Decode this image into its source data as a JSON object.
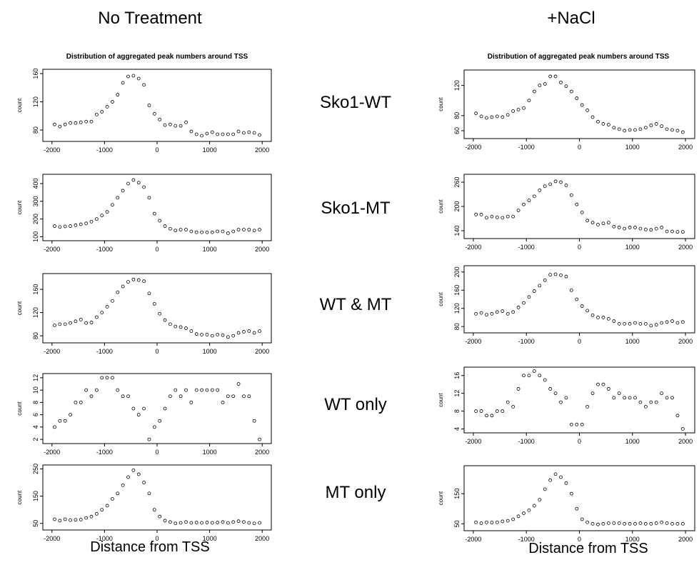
{
  "headers": {
    "left": "No Treatment",
    "right": "+NaCl"
  },
  "row_labels": [
    "Sko1-WT",
    "Sko1-MT",
    "WT & MT",
    "WT only",
    "MT only"
  ],
  "plot_title": "Distribution of aggregated peak numbers around TSS",
  "x_axis_title": "Distance from TSS",
  "chart_data": [
    {
      "type": "scatter",
      "column": "No Treatment",
      "row": "Sko1-WT",
      "title": "Distribution of aggregated peak numbers around TSS",
      "ylabel": "count",
      "xlim": [
        -2000,
        2000
      ],
      "ylim": [
        70,
        160
      ],
      "x": [
        -1950,
        -1850,
        -1750,
        -1650,
        -1550,
        -1450,
        -1350,
        -1250,
        -1150,
        -1050,
        -950,
        -850,
        -750,
        -650,
        -550,
        -450,
        -350,
        -250,
        -150,
        -50,
        50,
        150,
        250,
        350,
        450,
        550,
        650,
        750,
        850,
        950,
        1050,
        1150,
        1250,
        1350,
        1450,
        1550,
        1650,
        1750,
        1850,
        1950
      ],
      "y": [
        88,
        85,
        88,
        90,
        90,
        91,
        92,
        92,
        102,
        106,
        113,
        120,
        130,
        147,
        156,
        157,
        153,
        144,
        115,
        103,
        95,
        87,
        88,
        86,
        86,
        91,
        78,
        74,
        72,
        75,
        77,
        74,
        74,
        74,
        74,
        78,
        76,
        77,
        76,
        73
      ],
      "xticks": [
        -2000,
        -1000,
        0,
        1000,
        2000
      ],
      "yticks": [
        80,
        120,
        160
      ]
    },
    {
      "type": "scatter",
      "column": "+NaCl",
      "row": "Sko1-WT",
      "title": "Distribution of aggregated peak numbers around TSS",
      "ylabel": "count",
      "xlim": [
        -2000,
        2000
      ],
      "ylim": [
        55,
        135
      ],
      "x": [
        -1950,
        -1850,
        -1750,
        -1650,
        -1550,
        -1450,
        -1350,
        -1250,
        -1150,
        -1050,
        -950,
        -850,
        -750,
        -650,
        -550,
        -450,
        -350,
        -250,
        -150,
        -50,
        50,
        150,
        250,
        350,
        450,
        550,
        650,
        750,
        850,
        950,
        1050,
        1150,
        1250,
        1350,
        1450,
        1550,
        1650,
        1750,
        1850,
        1950
      ],
      "y": [
        83,
        79,
        77,
        78,
        79,
        78,
        81,
        86,
        88,
        90,
        100,
        112,
        120,
        122,
        132,
        132,
        124,
        119,
        112,
        103,
        94,
        87,
        78,
        72,
        69,
        68,
        64,
        62,
        60,
        61,
        61,
        62,
        64,
        67,
        69,
        66,
        62,
        61,
        60,
        58
      ],
      "xticks": [
        -2000,
        -1000,
        0,
        1000,
        2000
      ],
      "yticks": [
        60,
        80,
        120
      ]
    },
    {
      "type": "scatter",
      "column": "No Treatment",
      "row": "Sko1-MT",
      "title": "",
      "ylabel": "count",
      "xlim": [
        -2000,
        2000
      ],
      "ylim": [
        100,
        430
      ],
      "x": [
        -1950,
        -1850,
        -1750,
        -1650,
        -1550,
        -1450,
        -1350,
        -1250,
        -1150,
        -1050,
        -950,
        -850,
        -750,
        -650,
        -550,
        -450,
        -350,
        -250,
        -150,
        -50,
        50,
        150,
        250,
        350,
        450,
        550,
        650,
        750,
        850,
        950,
        1050,
        1150,
        1250,
        1350,
        1450,
        1550,
        1650,
        1750,
        1850,
        1950
      ],
      "y": [
        160,
        155,
        158,
        160,
        165,
        170,
        175,
        185,
        200,
        220,
        240,
        280,
        320,
        360,
        400,
        420,
        405,
        380,
        320,
        230,
        190,
        160,
        145,
        135,
        140,
        140,
        130,
        125,
        125,
        125,
        125,
        130,
        130,
        120,
        130,
        140,
        140,
        140,
        135,
        140
      ],
      "xticks": [
        -2000,
        -1000,
        0,
        1000,
        2000
      ],
      "yticks": [
        100,
        200,
        300,
        400
      ]
    },
    {
      "type": "scatter",
      "column": "+NaCl",
      "row": "Sko1-MT",
      "title": "",
      "ylabel": "count",
      "xlim": [
        -2000,
        2000
      ],
      "ylim": [
        130,
        270
      ],
      "x": [
        -1950,
        -1850,
        -1750,
        -1650,
        -1550,
        -1450,
        -1350,
        -1250,
        -1150,
        -1050,
        -950,
        -850,
        -750,
        -650,
        -550,
        -450,
        -350,
        -250,
        -150,
        -50,
        50,
        150,
        250,
        350,
        450,
        550,
        650,
        750,
        850,
        950,
        1050,
        1150,
        1250,
        1350,
        1450,
        1550,
        1650,
        1750,
        1850,
        1950
      ],
      "y": [
        180,
        180,
        172,
        175,
        173,
        172,
        175,
        175,
        190,
        205,
        215,
        225,
        240,
        250,
        255,
        262,
        260,
        252,
        228,
        205,
        185,
        165,
        160,
        155,
        158,
        160,
        150,
        148,
        145,
        148,
        148,
        145,
        143,
        142,
        145,
        148,
        138,
        138,
        137,
        137
      ],
      "xticks": [
        -2000,
        -1000,
        0,
        1000,
        2000
      ],
      "yticks": [
        140,
        200,
        260
      ]
    },
    {
      "type": "scatter",
      "column": "No Treatment",
      "row": "WT & MT",
      "title": "",
      "ylabel": "count",
      "xlim": [
        -2000,
        2000
      ],
      "ylim": [
        75,
        180
      ],
      "x": [
        -1950,
        -1850,
        -1750,
        -1650,
        -1550,
        -1450,
        -1350,
        -1250,
        -1150,
        -1050,
        -950,
        -850,
        -750,
        -650,
        -550,
        -450,
        -350,
        -250,
        -150,
        -50,
        50,
        150,
        250,
        350,
        450,
        550,
        650,
        750,
        850,
        950,
        1050,
        1150,
        1250,
        1350,
        1450,
        1550,
        1650,
        1750,
        1850,
        1950
      ],
      "y": [
        98,
        100,
        100,
        102,
        105,
        108,
        102,
        103,
        112,
        120,
        130,
        140,
        155,
        165,
        173,
        177,
        176,
        174,
        153,
        135,
        118,
        107,
        100,
        96,
        95,
        93,
        88,
        83,
        82,
        82,
        80,
        82,
        81,
        78,
        80,
        85,
        87,
        88,
        85,
        88
      ],
      "xticks": [
        -2000,
        -1000,
        0,
        1000,
        2000
      ],
      "yticks": [
        80,
        120,
        160
      ]
    },
    {
      "type": "scatter",
      "column": "+NaCl",
      "row": "WT & MT",
      "title": "",
      "ylabel": "count",
      "xlim": [
        -2000,
        2000
      ],
      "ylim": [
        75,
        205
      ],
      "x": [
        -1950,
        -1850,
        -1750,
        -1650,
        -1550,
        -1450,
        -1350,
        -1250,
        -1150,
        -1050,
        -950,
        -850,
        -750,
        -650,
        -550,
        -450,
        -350,
        -250,
        -150,
        -50,
        50,
        150,
        250,
        350,
        450,
        550,
        650,
        750,
        850,
        950,
        1050,
        1150,
        1250,
        1350,
        1450,
        1550,
        1650,
        1750,
        1850,
        1950
      ],
      "y": [
        108,
        110,
        106,
        108,
        112,
        114,
        108,
        112,
        122,
        132,
        145,
        158,
        170,
        182,
        194,
        195,
        193,
        190,
        160,
        140,
        125,
        115,
        105,
        100,
        100,
        97,
        92,
        86,
        86,
        86,
        88,
        86,
        86,
        82,
        84,
        88,
        90,
        92,
        88,
        90
      ],
      "xticks": [
        -2000,
        -1000,
        0,
        1000,
        2000
      ],
      "yticks": [
        80,
        120,
        160,
        200
      ]
    },
    {
      "type": "scatter",
      "column": "No Treatment",
      "row": "WT only",
      "title": "",
      "ylabel": "count",
      "xlim": [
        -2000,
        2000
      ],
      "ylim": [
        2,
        12
      ],
      "x": [
        -1950,
        -1850,
        -1750,
        -1650,
        -1550,
        -1450,
        -1350,
        -1250,
        -1150,
        -1050,
        -950,
        -850,
        -750,
        -650,
        -550,
        -450,
        -350,
        -250,
        -150,
        -50,
        50,
        150,
        250,
        350,
        450,
        550,
        650,
        750,
        850,
        950,
        1050,
        1150,
        1250,
        1350,
        1450,
        1550,
        1650,
        1750,
        1850,
        1950
      ],
      "y": [
        4,
        5,
        5,
        6,
        8,
        8,
        10,
        9,
        10,
        12,
        12,
        12,
        10,
        9,
        9,
        7,
        6,
        7,
        2,
        4,
        5,
        7,
        9,
        10,
        9,
        10,
        8,
        10,
        10,
        10,
        10,
        10,
        8,
        9,
        9,
        11,
        9,
        9,
        5,
        2
      ],
      "xticks": [
        -2000,
        -1000,
        0,
        1000,
        2000
      ],
      "yticks": [
        2,
        4,
        6,
        8,
        10,
        12
      ]
    },
    {
      "type": "scatter",
      "column": "+NaCl",
      "row": "WT only",
      "title": "",
      "ylabel": "count",
      "xlim": [
        -2000,
        2000
      ],
      "ylim": [
        4,
        17
      ],
      "x": [
        -1950,
        -1850,
        -1750,
        -1650,
        -1550,
        -1450,
        -1350,
        -1250,
        -1150,
        -1050,
        -950,
        -850,
        -750,
        -650,
        -550,
        -450,
        -350,
        -250,
        -150,
        -50,
        50,
        150,
        250,
        350,
        450,
        550,
        650,
        750,
        850,
        950,
        1050,
        1150,
        1250,
        1350,
        1450,
        1550,
        1650,
        1750,
        1850,
        1950
      ],
      "y": [
        8,
        8,
        7,
        7,
        8,
        8,
        10,
        9,
        13,
        16,
        16,
        17,
        16,
        15,
        13,
        12,
        10,
        11,
        5,
        5,
        5,
        9,
        12,
        14,
        14,
        13,
        11,
        12,
        11,
        11,
        11,
        10,
        9,
        10,
        10,
        12,
        11,
        11,
        7,
        4
      ],
      "xticks": [
        -2000,
        -1000,
        0,
        1000,
        2000
      ],
      "yticks": [
        4,
        8,
        12,
        16
      ]
    },
    {
      "type": "scatter",
      "column": "No Treatment",
      "row": "MT only",
      "title": "",
      "ylabel": "count",
      "xlim": [
        -2000,
        2000
      ],
      "ylim": [
        40,
        250
      ],
      "x": [
        -1950,
        -1850,
        -1750,
        -1650,
        -1550,
        -1450,
        -1350,
        -1250,
        -1150,
        -1050,
        -950,
        -850,
        -750,
        -650,
        -550,
        -450,
        -350,
        -250,
        -150,
        -50,
        50,
        150,
        250,
        350,
        450,
        550,
        650,
        750,
        850,
        950,
        1050,
        1150,
        1250,
        1350,
        1450,
        1550,
        1650,
        1750,
        1850,
        1950
      ],
      "y": [
        65,
        60,
        65,
        62,
        63,
        64,
        70,
        75,
        85,
        100,
        115,
        140,
        160,
        190,
        220,
        245,
        230,
        200,
        160,
        100,
        75,
        60,
        55,
        50,
        52,
        55,
        52,
        53,
        52,
        53,
        52,
        53,
        55,
        52,
        55,
        58,
        55,
        52,
        50,
        52
      ],
      "xticks": [
        -2000,
        -1000,
        0,
        1000,
        2000
      ],
      "yticks": [
        50,
        150,
        250
      ]
    },
    {
      "type": "scatter",
      "column": "+NaCl",
      "row": "MT only",
      "title": "",
      "ylabel": "count",
      "xlim": [
        -2000,
        2000
      ],
      "ylim": [
        40,
        230
      ],
      "x": [
        -1950,
        -1850,
        -1750,
        -1650,
        -1550,
        -1450,
        -1350,
        -1250,
        -1150,
        -1050,
        -950,
        -850,
        -750,
        -650,
        -550,
        -450,
        -350,
        -250,
        -150,
        -50,
        50,
        150,
        250,
        350,
        450,
        550,
        650,
        750,
        850,
        950,
        1050,
        1150,
        1250,
        1350,
        1450,
        1550,
        1650,
        1750,
        1850,
        1950
      ],
      "y": [
        55,
        52,
        55,
        54,
        55,
        58,
        60,
        65,
        75,
        85,
        95,
        110,
        130,
        165,
        195,
        215,
        205,
        185,
        150,
        100,
        65,
        55,
        50,
        48,
        50,
        52,
        52,
        52,
        50,
        50,
        50,
        52,
        50,
        50,
        52,
        55,
        52,
        50,
        50,
        50
      ],
      "xticks": [
        -2000,
        -1000,
        0,
        1000,
        2000
      ],
      "yticks": [
        50,
        150
      ]
    }
  ]
}
